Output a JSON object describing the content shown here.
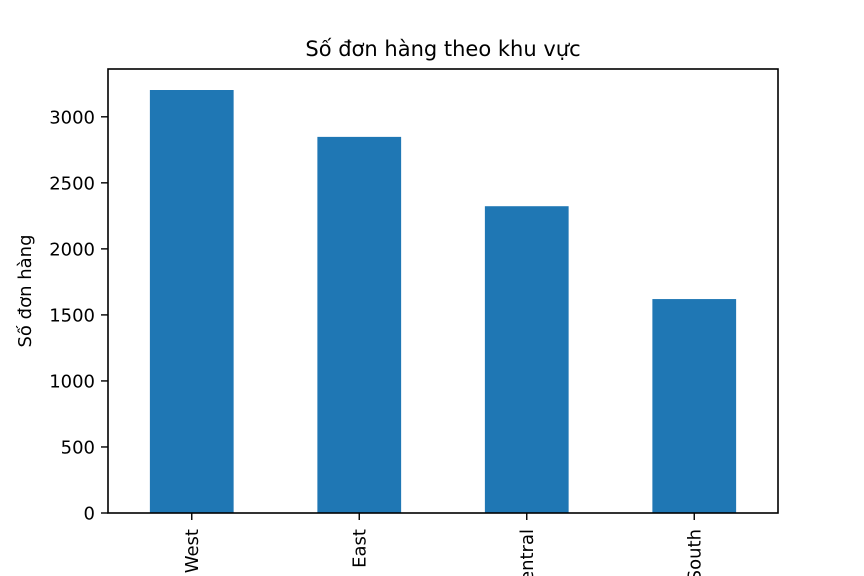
{
  "chart_data": {
    "type": "bar",
    "title": "Số đơn hàng theo khu vực",
    "xlabel": "",
    "ylabel": "Số đơn hàng",
    "categories": [
      "West",
      "East",
      "Central",
      "South"
    ],
    "values": [
      3203,
      2848,
      2323,
      1620
    ],
    "ylim": [
      0,
      3362
    ],
    "yticks": [
      0,
      500,
      1000,
      1500,
      2000,
      2500,
      3000
    ],
    "x_tick_rotation": 90,
    "grid": false,
    "legend": "none",
    "colors": {
      "bar": "#1f77b4",
      "axes": "#000000",
      "background": "#ffffff"
    }
  }
}
